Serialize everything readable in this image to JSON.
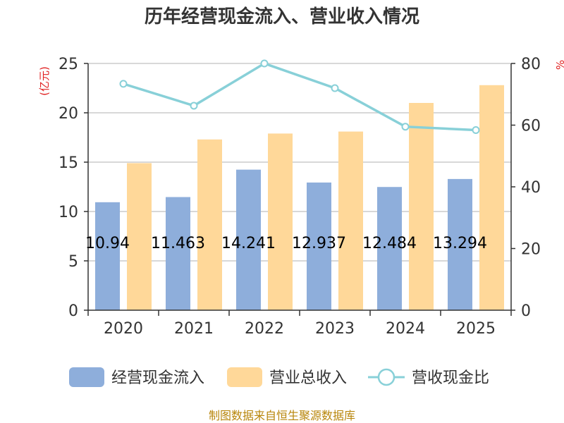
{
  "chart_data": {
    "type": "bar+line",
    "title": "历年经营现金流入、营业收入情况",
    "categories": [
      "2020",
      "2021",
      "2022",
      "2023",
      "2024",
      "2025"
    ],
    "series": [
      {
        "name": "经营现金流入",
        "kind": "bar",
        "axis": "left",
        "color": "#8eaedb",
        "values": [
          10.94,
          11.463,
          14.241,
          12.937,
          12.484,
          13.294
        ],
        "labels": [
          "10.94",
          "11.463",
          "14.241",
          "12.937",
          "12.484",
          "13.294"
        ]
      },
      {
        "name": "营业总收入",
        "kind": "bar",
        "axis": "left",
        "color": "#ffd899",
        "values": [
          14.9,
          17.3,
          17.9,
          18.1,
          21.0,
          22.8
        ]
      },
      {
        "name": "营收现金比",
        "kind": "line",
        "axis": "right",
        "color": "#88d0d8",
        "values": [
          73.4,
          66.3,
          80.0,
          72.0,
          59.5,
          58.4
        ]
      }
    ],
    "left_axis": {
      "unit_label": "(亿元)",
      "ylim": [
        0,
        25
      ],
      "ticks": [
        0,
        5,
        10,
        15,
        20,
        25
      ]
    },
    "right_axis": {
      "unit_label": "%",
      "ylim": [
        0,
        80
      ],
      "ticks": [
        0,
        20,
        40,
        60,
        80
      ]
    },
    "legend_position": "bottom",
    "grid": true
  },
  "source": "制图数据来自恒生聚源数据库"
}
